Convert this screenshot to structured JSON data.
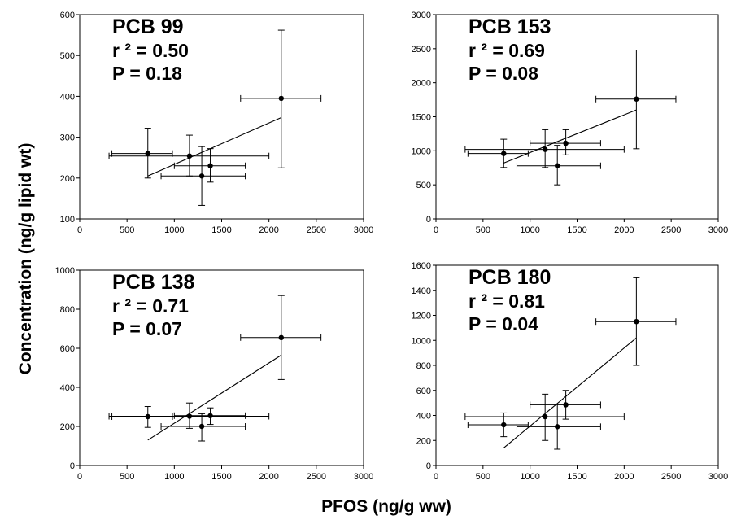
{
  "figure": {
    "ylabel": "Concentration (ng/g lipid wt)",
    "xlabel": "PFOS (ng/g ww)"
  },
  "chart_data": [
    {
      "type": "scatter",
      "panel": "top-left",
      "annotation": {
        "title": "PCB 99",
        "r2": "r ² = 0.50",
        "p": "P = 0.18"
      },
      "xlim": [
        0,
        3000
      ],
      "ylim": [
        100,
        600
      ],
      "xticks": [
        0,
        500,
        1000,
        1500,
        2000,
        2500,
        3000
      ],
      "yticks": [
        100,
        200,
        300,
        400,
        500,
        600
      ],
      "points": [
        {
          "x": 720,
          "y": 260,
          "x_err": [
            340,
            980
          ],
          "y_err": [
            200,
            322
          ]
        },
        {
          "x": 1160,
          "y": 254,
          "x_err": [
            310,
            2000
          ],
          "y_err": [
            205,
            305
          ]
        },
        {
          "x": 1290,
          "y": 205,
          "x_err": [
            860,
            1750
          ],
          "y_err": [
            133,
            277
          ]
        },
        {
          "x": 1380,
          "y": 230,
          "x_err": [
            1000,
            1750
          ],
          "y_err": [
            190,
            272
          ]
        },
        {
          "x": 2130,
          "y": 395,
          "x_err": [
            1700,
            2550
          ],
          "y_err": [
            225,
            562
          ]
        }
      ],
      "fit": {
        "x": [
          720,
          2130
        ],
        "y": [
          205,
          348
        ]
      }
    },
    {
      "type": "scatter",
      "panel": "top-right",
      "annotation": {
        "title": "PCB 153",
        "r2": "r ² = 0.69",
        "p": "P = 0.08"
      },
      "xlim": [
        0,
        3000
      ],
      "ylim": [
        0,
        3000
      ],
      "xticks": [
        0,
        500,
        1000,
        1500,
        2000,
        2500,
        3000
      ],
      "yticks": [
        0,
        500,
        1000,
        1500,
        2000,
        2500,
        3000
      ],
      "points": [
        {
          "x": 720,
          "y": 960,
          "x_err": [
            340,
            980
          ],
          "y_err": [
            755,
            1170
          ]
        },
        {
          "x": 1160,
          "y": 1020,
          "x_err": [
            310,
            2000
          ],
          "y_err": [
            755,
            1310
          ]
        },
        {
          "x": 1290,
          "y": 780,
          "x_err": [
            860,
            1750
          ],
          "y_err": [
            500,
            1080
          ]
        },
        {
          "x": 1380,
          "y": 1110,
          "x_err": [
            1000,
            1750
          ],
          "y_err": [
            940,
            1310
          ]
        },
        {
          "x": 2130,
          "y": 1760,
          "x_err": [
            1700,
            2550
          ],
          "y_err": [
            1030,
            2480
          ]
        }
      ],
      "fit": {
        "x": [
          720,
          2130
        ],
        "y": [
          820,
          1600
        ]
      }
    },
    {
      "type": "scatter",
      "panel": "bottom-left",
      "annotation": {
        "title": "PCB 138",
        "r2": "r ² = 0.71",
        "p": "P = 0.07"
      },
      "xlim": [
        0,
        3000
      ],
      "ylim": [
        0,
        1000
      ],
      "xticks": [
        0,
        500,
        1000,
        1500,
        2000,
        2500,
        3000
      ],
      "yticks": [
        0,
        200,
        400,
        600,
        800,
        1000
      ],
      "points": [
        {
          "x": 720,
          "y": 250,
          "x_err": [
            340,
            980
          ],
          "y_err": [
            195,
            302
          ]
        },
        {
          "x": 1160,
          "y": 252,
          "x_err": [
            310,
            2000
          ],
          "y_err": [
            190,
            320
          ]
        },
        {
          "x": 1290,
          "y": 200,
          "x_err": [
            860,
            1750
          ],
          "y_err": [
            125,
            265
          ]
        },
        {
          "x": 1380,
          "y": 255,
          "x_err": [
            1000,
            1750
          ],
          "y_err": [
            210,
            295
          ]
        },
        {
          "x": 2130,
          "y": 655,
          "x_err": [
            1700,
            2550
          ],
          "y_err": [
            440,
            870
          ]
        }
      ],
      "fit": {
        "x": [
          720,
          2130
        ],
        "y": [
          130,
          565
        ]
      }
    },
    {
      "type": "scatter",
      "panel": "bottom-right",
      "annotation": {
        "title": "PCB 180",
        "r2": "r ² = 0.81",
        "p": "P = 0.04"
      },
      "xlim": [
        0,
        3000
      ],
      "ylim": [
        0,
        1600
      ],
      "xticks": [
        0,
        500,
        1000,
        1500,
        2000,
        2500,
        3000
      ],
      "yticks": [
        0,
        200,
        400,
        600,
        800,
        1000,
        1200,
        1400,
        1600
      ],
      "points": [
        {
          "x": 720,
          "y": 325,
          "x_err": [
            340,
            980
          ],
          "y_err": [
            230,
            420
          ]
        },
        {
          "x": 1160,
          "y": 390,
          "x_err": [
            310,
            2000
          ],
          "y_err": [
            200,
            570
          ]
        },
        {
          "x": 1290,
          "y": 310,
          "x_err": [
            860,
            1750
          ],
          "y_err": [
            130,
            490
          ]
        },
        {
          "x": 1380,
          "y": 485,
          "x_err": [
            1000,
            1750
          ],
          "y_err": [
            370,
            600
          ]
        },
        {
          "x": 2130,
          "y": 1150,
          "x_err": [
            1700,
            2550
          ],
          "y_err": [
            800,
            1500
          ]
        }
      ],
      "fit": {
        "x": [
          720,
          2130
        ],
        "y": [
          140,
          1020
        ]
      }
    }
  ]
}
